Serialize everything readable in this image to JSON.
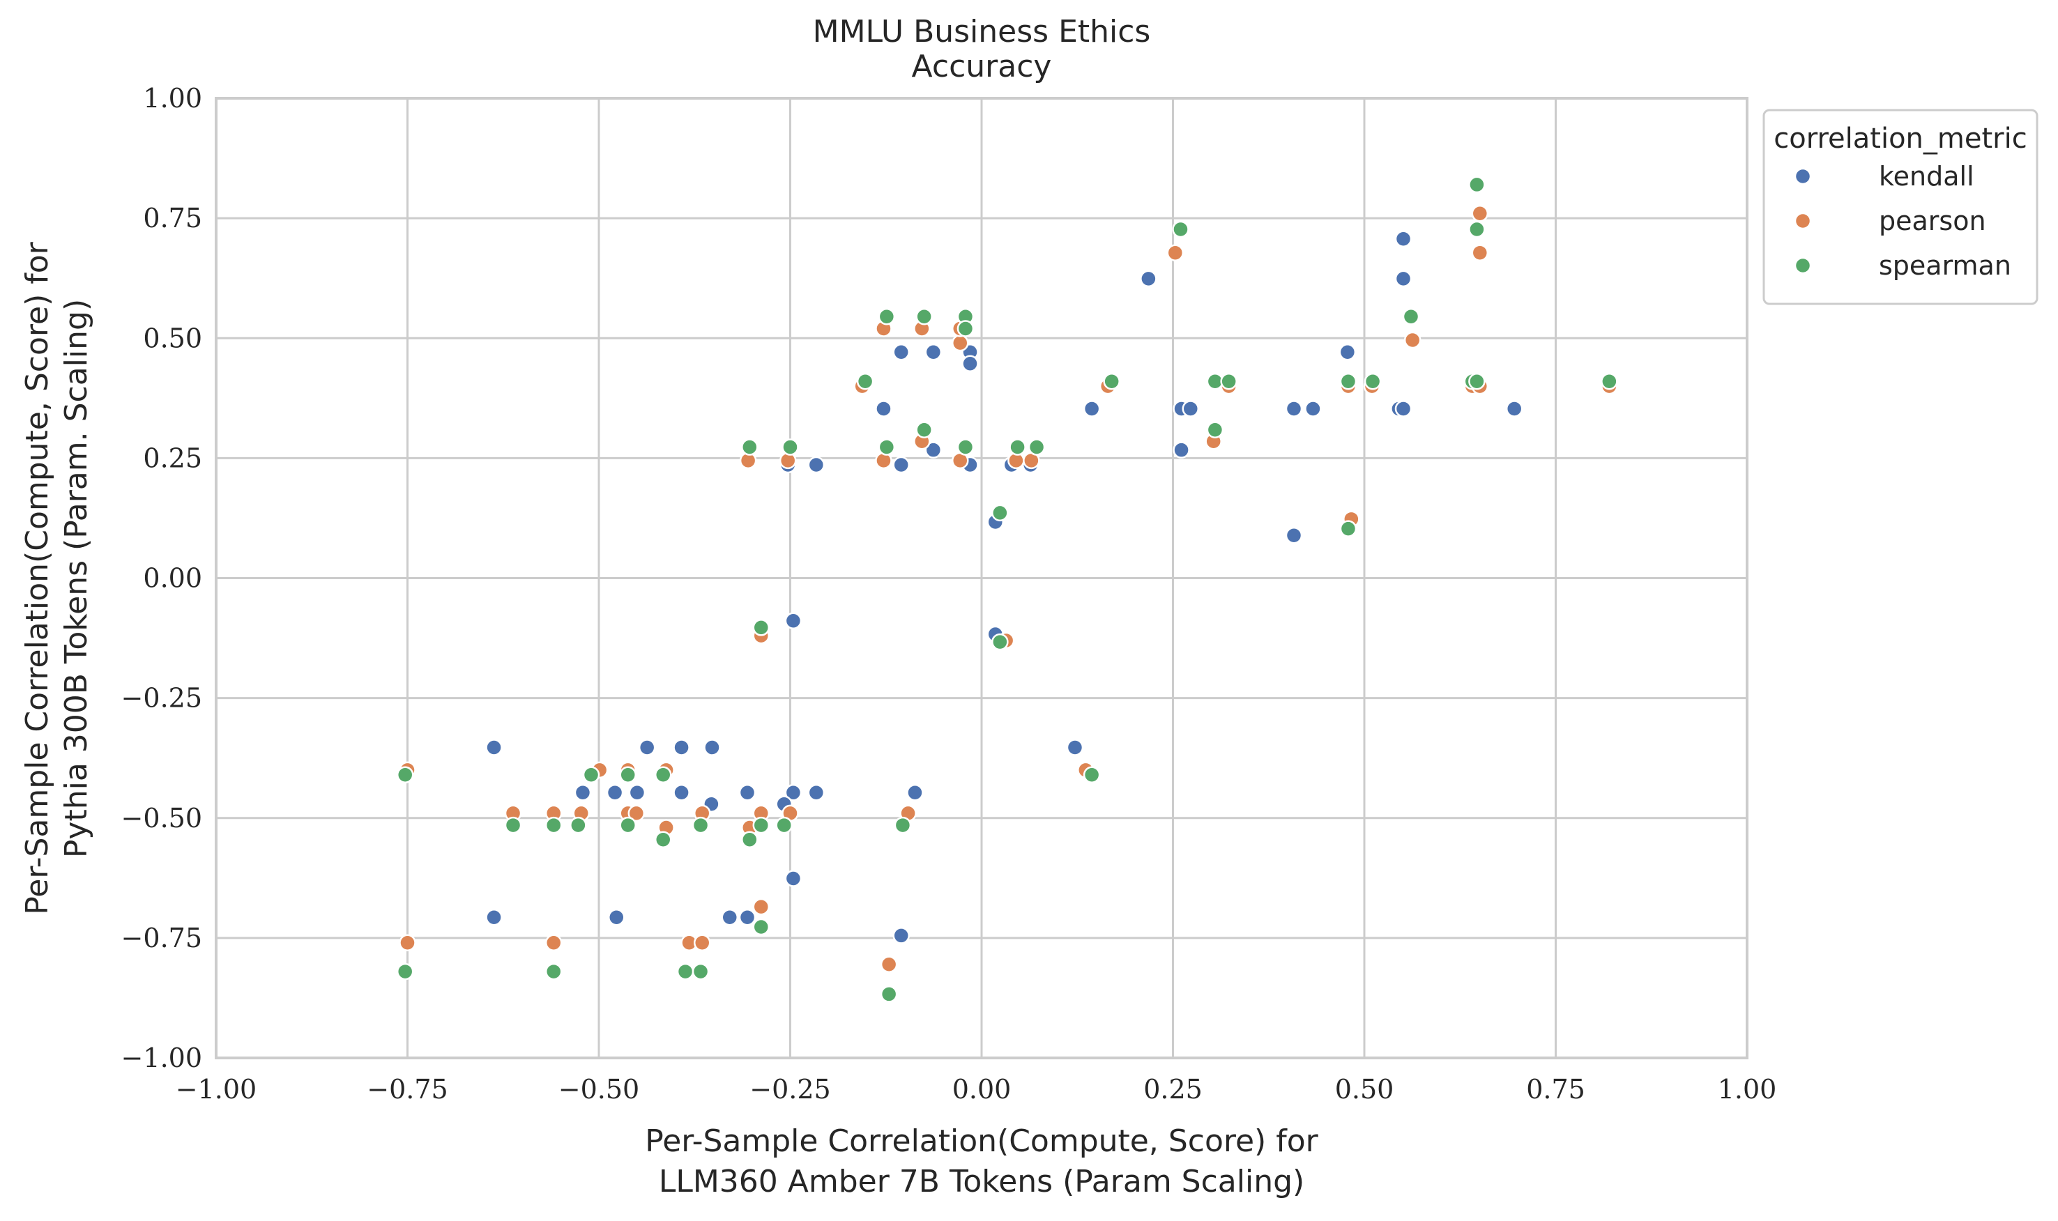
{
  "chart_data": {
    "type": "scatter",
    "title": "MMLU Business Ethics",
    "subtitle": "Accuracy",
    "xlabel": [
      "Per-Sample Correlation(Compute, Score) for",
      "LLM360 Amber 7B Tokens (Param Scaling)"
    ],
    "ylabel": [
      "Per-Sample Correlation(Compute, Score) for",
      "Pythia 300B Tokens (Param. Scaling)"
    ],
    "xlim": [
      -1.0,
      1.0
    ],
    "ylim": [
      -1.0,
      1.0
    ],
    "xticks": [
      "−1.00",
      "−0.75",
      "−0.50",
      "−0.25",
      "0.00",
      "0.25",
      "0.50",
      "0.75",
      "1.00"
    ],
    "yticks": [
      "−1.00",
      "−0.75",
      "−0.50",
      "−0.25",
      "0.00",
      "0.25",
      "0.50",
      "0.75",
      "1.00"
    ],
    "xtick_values": [
      -1.0,
      -0.75,
      -0.5,
      -0.25,
      0.0,
      0.25,
      0.5,
      0.75,
      1.0
    ],
    "ytick_values": [
      -1.0,
      -0.75,
      -0.5,
      -0.25,
      0.0,
      0.25,
      0.5,
      0.75,
      1.0
    ],
    "grid": true,
    "legend": {
      "title": "correlation_metric",
      "placement": "outside-right-top"
    },
    "series": [
      {
        "name": "kendall",
        "color": "#4c72b0",
        "points": [
          [
            -0.637,
            -0.353
          ],
          [
            -0.637,
            -0.707
          ],
          [
            -0.437,
            -0.353
          ],
          [
            -0.392,
            -0.353
          ],
          [
            -0.352,
            -0.353
          ],
          [
            -0.521,
            -0.447
          ],
          [
            -0.479,
            -0.447
          ],
          [
            -0.45,
            -0.447
          ],
          [
            -0.392,
            -0.447
          ],
          [
            -0.306,
            -0.447
          ],
          [
            -0.246,
            -0.447
          ],
          [
            -0.216,
            -0.447
          ],
          [
            -0.087,
            -0.447
          ],
          [
            -0.353,
            -0.471
          ],
          [
            -0.258,
            -0.471
          ],
          [
            -0.477,
            -0.707
          ],
          [
            -0.329,
            -0.707
          ],
          [
            -0.306,
            -0.707
          ],
          [
            -0.246,
            -0.626
          ],
          [
            -0.105,
            -0.745
          ],
          [
            -0.246,
            -0.089
          ],
          [
            -0.253,
            0.236
          ],
          [
            -0.216,
            0.236
          ],
          [
            -0.105,
            0.236
          ],
          [
            -0.063,
            0.267
          ],
          [
            -0.015,
            0.236
          ],
          [
            0.039,
            0.236
          ],
          [
            0.064,
            0.236
          ],
          [
            -0.128,
            0.353
          ],
          [
            -0.105,
            0.471
          ],
          [
            -0.063,
            0.471
          ],
          [
            -0.015,
            0.471
          ],
          [
            -0.015,
            0.447
          ],
          [
            0.018,
            -0.117
          ],
          [
            0.018,
            0.117
          ],
          [
            0.122,
            -0.353
          ],
          [
            0.144,
            0.353
          ],
          [
            0.218,
            0.624
          ],
          [
            0.261,
            0.267
          ],
          [
            0.261,
            0.353
          ],
          [
            0.273,
            0.353
          ],
          [
            0.408,
            0.353
          ],
          [
            0.433,
            0.353
          ],
          [
            0.408,
            0.089
          ],
          [
            0.478,
            0.471
          ],
          [
            0.545,
            0.353
          ],
          [
            0.551,
            0.353
          ],
          [
            0.551,
            0.624
          ],
          [
            0.551,
            0.707
          ],
          [
            0.696,
            0.353
          ]
        ]
      },
      {
        "name": "pearson",
        "color": "#dd8452",
        "points": [
          [
            -0.75,
            -0.4
          ],
          [
            -0.75,
            -0.76
          ],
          [
            -0.612,
            -0.49
          ],
          [
            -0.559,
            -0.49
          ],
          [
            -0.559,
            -0.76
          ],
          [
            -0.523,
            -0.49
          ],
          [
            -0.499,
            -0.4
          ],
          [
            -0.462,
            -0.4
          ],
          [
            -0.462,
            -0.49
          ],
          [
            -0.451,
            -0.49
          ],
          [
            -0.412,
            -0.4
          ],
          [
            -0.412,
            -0.52
          ],
          [
            -0.382,
            -0.76
          ],
          [
            -0.365,
            -0.49
          ],
          [
            -0.365,
            -0.76
          ],
          [
            -0.303,
            -0.52
          ],
          [
            -0.288,
            -0.49
          ],
          [
            -0.288,
            -0.685
          ],
          [
            -0.288,
            -0.12
          ],
          [
            -0.25,
            -0.49
          ],
          [
            -0.121,
            -0.805
          ],
          [
            -0.096,
            -0.49
          ],
          [
            -0.305,
            0.245
          ],
          [
            -0.253,
            0.245
          ],
          [
            -0.156,
            0.4
          ],
          [
            -0.128,
            0.245
          ],
          [
            -0.128,
            0.52
          ],
          [
            -0.078,
            0.52
          ],
          [
            -0.078,
            0.285
          ],
          [
            -0.028,
            0.49
          ],
          [
            -0.028,
            0.245
          ],
          [
            -0.028,
            0.52
          ],
          [
            0.045,
            0.245
          ],
          [
            0.065,
            0.245
          ],
          [
            0.032,
            -0.13
          ],
          [
            0.136,
            -0.4
          ],
          [
            0.165,
            0.4
          ],
          [
            0.253,
            0.678
          ],
          [
            0.303,
            0.285
          ],
          [
            0.323,
            0.4
          ],
          [
            0.479,
            0.4
          ],
          [
            0.483,
            0.123
          ],
          [
            0.51,
            0.4
          ],
          [
            0.563,
            0.496
          ],
          [
            0.641,
            0.4
          ],
          [
            0.651,
            0.4
          ],
          [
            0.651,
            0.678
          ],
          [
            0.651,
            0.76
          ],
          [
            0.82,
            0.4
          ]
        ]
      },
      {
        "name": "spearman",
        "color": "#55a868",
        "points": [
          [
            -0.753,
            -0.41
          ],
          [
            -0.753,
            -0.82
          ],
          [
            -0.612,
            -0.515
          ],
          [
            -0.559,
            -0.515
          ],
          [
            -0.559,
            -0.82
          ],
          [
            -0.527,
            -0.515
          ],
          [
            -0.51,
            -0.41
          ],
          [
            -0.462,
            -0.41
          ],
          [
            -0.462,
            -0.515
          ],
          [
            -0.462,
            -0.515
          ],
          [
            -0.416,
            -0.41
          ],
          [
            -0.416,
            -0.545
          ],
          [
            -0.387,
            -0.82
          ],
          [
            -0.367,
            -0.515
          ],
          [
            -0.367,
            -0.82
          ],
          [
            -0.303,
            -0.545
          ],
          [
            -0.288,
            -0.515
          ],
          [
            -0.288,
            -0.727
          ],
          [
            -0.288,
            -0.103
          ],
          [
            -0.258,
            -0.515
          ],
          [
            -0.121,
            -0.867
          ],
          [
            -0.103,
            -0.515
          ],
          [
            -0.303,
            0.273
          ],
          [
            -0.25,
            0.273
          ],
          [
            -0.152,
            0.41
          ],
          [
            -0.124,
            0.273
          ],
          [
            -0.124,
            0.545
          ],
          [
            -0.075,
            0.545
          ],
          [
            -0.075,
            0.309
          ],
          [
            -0.021,
            0.545
          ],
          [
            -0.021,
            0.273
          ],
          [
            -0.021,
            0.52
          ],
          [
            0.047,
            0.273
          ],
          [
            0.072,
            0.273
          ],
          [
            0.024,
            0.136
          ],
          [
            0.024,
            -0.133
          ],
          [
            0.144,
            -0.41
          ],
          [
            0.17,
            0.41
          ],
          [
            0.26,
            0.727
          ],
          [
            0.305,
            0.309
          ],
          [
            0.305,
            0.41
          ],
          [
            0.323,
            0.41
          ],
          [
            0.479,
            0.41
          ],
          [
            0.479,
            0.103
          ],
          [
            0.511,
            0.41
          ],
          [
            0.561,
            0.545
          ],
          [
            0.641,
            0.41
          ],
          [
            0.647,
            0.41
          ],
          [
            0.647,
            0.727
          ],
          [
            0.647,
            0.82
          ],
          [
            0.82,
            0.41
          ]
        ]
      }
    ]
  }
}
